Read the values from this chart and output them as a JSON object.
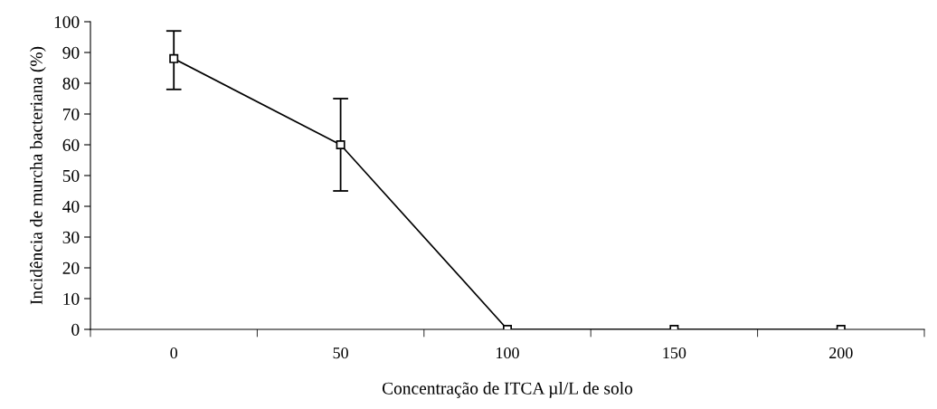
{
  "chart_data": {
    "type": "line",
    "xlabel": "Concentração de ITCA µl/L de solo",
    "ylabel": "Incidência de murcha bacteriana (%)",
    "categories": [
      "0",
      "50",
      "100",
      "150",
      "200"
    ],
    "series": [
      {
        "color": "#000000",
        "values": [
          88,
          60,
          0,
          0,
          0
        ],
        "errors": [
          [
            78,
            97
          ],
          [
            45,
            75
          ],
          null,
          null,
          null
        ]
      }
    ],
    "ylim": [
      0,
      100
    ],
    "yticks": [
      0,
      10,
      20,
      30,
      40,
      50,
      60,
      70,
      80,
      90,
      100
    ],
    "marker": "square",
    "line_style": "solid",
    "grid": false,
    "legend": false
  }
}
